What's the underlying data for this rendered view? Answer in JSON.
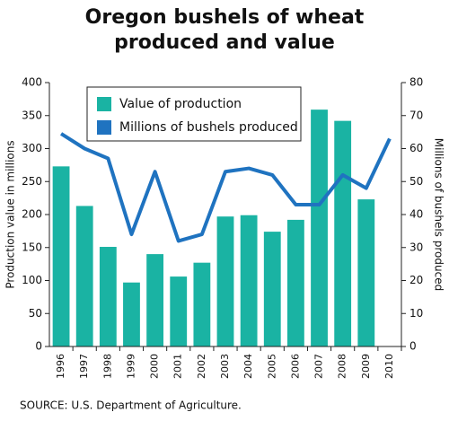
{
  "chart_data": {
    "type": "bar",
    "title": [
      "Oregon bushels of wheat",
      "produced and value"
    ],
    "y_label": "Production value in millions",
    "y2_label": "Millions of bushels produced",
    "source": "SOURCE:  U.S. Department of Agriculture.",
    "categories": [
      "1996",
      "1997",
      "1998",
      "1999",
      "2000",
      "2001",
      "2002",
      "2003",
      "2004",
      "2005",
      "2006",
      "2007",
      "2008",
      "2009",
      "2010"
    ],
    "series": [
      {
        "name": "Value of production",
        "color": "#1ab3a3",
        "type": "bar",
        "values": [
          273,
          213,
          151,
          97,
          140,
          106,
          127,
          197,
          199,
          174,
          192,
          359,
          342,
          223,
          null
        ]
      },
      {
        "name": "Millions of bushels produced",
        "color": "#1f73c0",
        "type": "line",
        "axis": "y2",
        "values": [
          64.5,
          60,
          57,
          34,
          53,
          32,
          34,
          53,
          54,
          52,
          43,
          43,
          52,
          48,
          63
        ]
      }
    ],
    "ylim": [
      0,
      400
    ],
    "yticks": [
      0,
      50,
      100,
      150,
      200,
      250,
      300,
      350,
      400
    ],
    "y2lim": [
      0,
      80
    ],
    "y2ticks": [
      0,
      10,
      20,
      30,
      40,
      50,
      60,
      70,
      80
    ]
  }
}
